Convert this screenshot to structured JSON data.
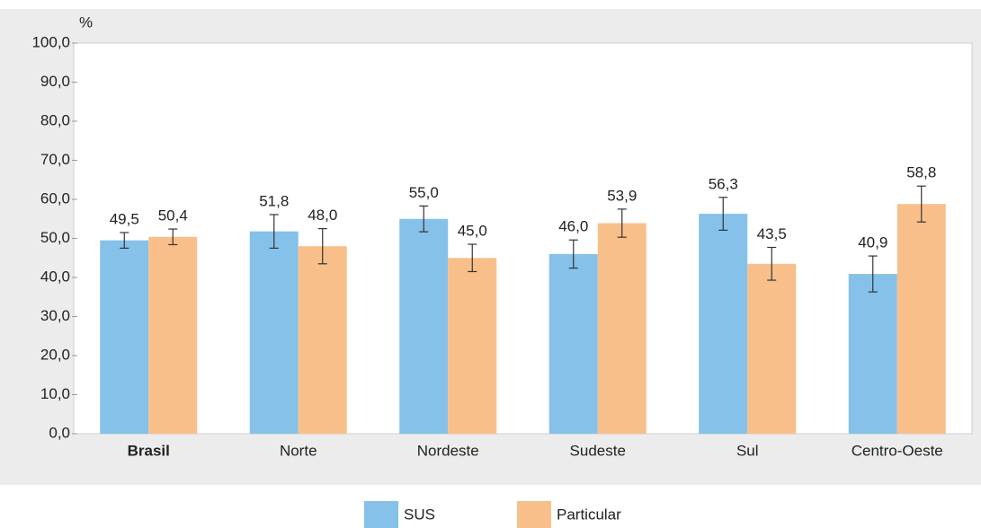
{
  "chart_data": {
    "type": "bar",
    "y_label": "%",
    "categories": [
      "Brasil",
      "Norte",
      "Nordeste",
      "Sudeste",
      "Sul",
      "Centro-Oeste"
    ],
    "bold_category": 0,
    "series": [
      {
        "name": "SUS",
        "color": "#85c1e9",
        "values": [
          49.5,
          51.8,
          55.0,
          46.0,
          56.3,
          40.9
        ],
        "value_labels": [
          "49,5",
          "51,8",
          "55,0",
          "46,0",
          "56,3",
          "40,9"
        ],
        "errors": [
          2.0,
          4.3,
          3.3,
          3.6,
          4.2,
          4.6
        ]
      },
      {
        "name": "Particular",
        "color": "#f8bf8a",
        "values": [
          50.4,
          48.0,
          45.0,
          53.9,
          43.5,
          58.8
        ],
        "value_labels": [
          "50,4",
          "48,0",
          "45,0",
          "53,9",
          "43,5",
          "58,8"
        ],
        "errors": [
          2.0,
          4.5,
          3.5,
          3.6,
          4.2,
          4.6
        ]
      }
    ],
    "ylim": [
      0,
      100
    ],
    "yticks": [
      {
        "value": 0,
        "label": "0,0"
      },
      {
        "value": 10,
        "label": "10,0"
      },
      {
        "value": 20,
        "label": "20,0"
      },
      {
        "value": 30,
        "label": "30,0"
      },
      {
        "value": 40,
        "label": "40,0"
      },
      {
        "value": 50,
        "label": "50,0"
      },
      {
        "value": 60,
        "label": "60,0"
      },
      {
        "value": 70,
        "label": "70,0"
      },
      {
        "value": 80,
        "label": "80,0"
      },
      {
        "value": 90,
        "label": "90,0"
      },
      {
        "value": 100,
        "label": "100,0"
      }
    ]
  }
}
